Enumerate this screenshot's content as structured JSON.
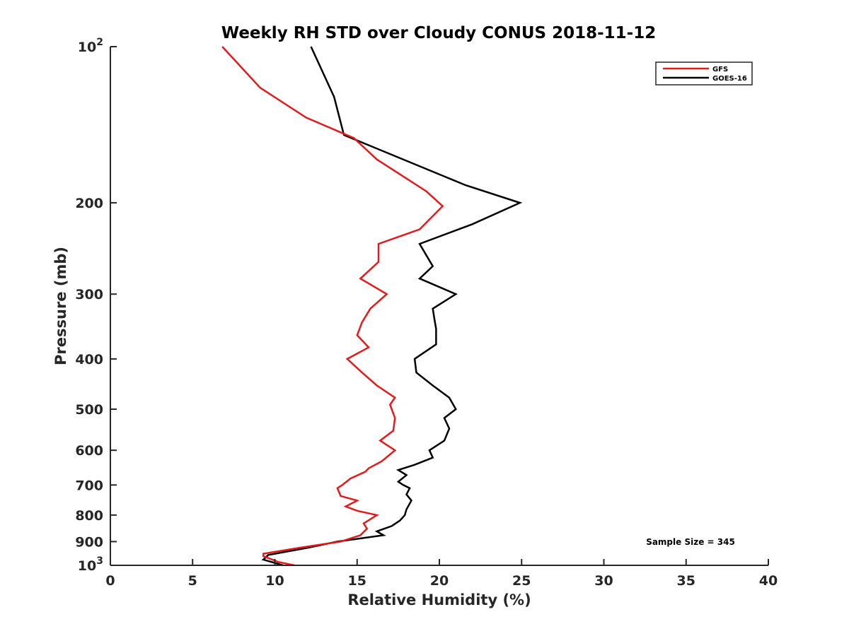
{
  "chart_data": {
    "type": "line",
    "title": "Weekly RH STD over Cloudy CONUS 2018-11-12",
    "xlabel": "Relative Humidity (%)",
    "ylabel": "Pressure (mb)",
    "xlim": [
      0,
      40
    ],
    "ylim": [
      100,
      1000
    ],
    "y_scale": "log",
    "y_reversed": true,
    "grid": false,
    "legend_position": "top-right",
    "x_ticks": [
      "0",
      "5",
      "10",
      "15",
      "20",
      "25",
      "30",
      "35",
      "40"
    ],
    "y_ticks": [
      {
        "value": 100,
        "base": "10",
        "exp": "2"
      },
      {
        "value": 200,
        "label": "200"
      },
      {
        "value": 300,
        "label": "300"
      },
      {
        "value": 400,
        "label": "400"
      },
      {
        "value": 500,
        "label": "500"
      },
      {
        "value": 600,
        "label": "600"
      },
      {
        "value": 700,
        "label": "700"
      },
      {
        "value": 800,
        "label": "800"
      },
      {
        "value": 900,
        "label": "900"
      },
      {
        "value": 1000,
        "base": "10",
        "exp": "3"
      }
    ],
    "annotation": "Sample Size = 345",
    "series": [
      {
        "name": "GFS",
        "color": "#e41a1c",
        "points": [
          [
            11.2,
            1000
          ],
          [
            10.2,
            985
          ],
          [
            9.3,
            960
          ],
          [
            9.3,
            950
          ],
          [
            11.5,
            925
          ],
          [
            14.0,
            900
          ],
          [
            15.2,
            875
          ],
          [
            15.6,
            850
          ],
          [
            15.4,
            830
          ],
          [
            15.8,
            815
          ],
          [
            16.2,
            800
          ],
          [
            15.0,
            785
          ],
          [
            14.3,
            770
          ],
          [
            15.0,
            750
          ],
          [
            14.0,
            735
          ],
          [
            13.8,
            710
          ],
          [
            14.1,
            700
          ],
          [
            14.6,
            680
          ],
          [
            15.5,
            660
          ],
          [
            15.7,
            650
          ],
          [
            16.5,
            630
          ],
          [
            17.3,
            600
          ],
          [
            16.4,
            575
          ],
          [
            17.2,
            550
          ],
          [
            17.3,
            520
          ],
          [
            17.0,
            490
          ],
          [
            17.3,
            475
          ],
          [
            16.2,
            450
          ],
          [
            15.3,
            425
          ],
          [
            14.4,
            400
          ],
          [
            15.7,
            380
          ],
          [
            15.0,
            360
          ],
          [
            15.3,
            340
          ],
          [
            15.8,
            320
          ],
          [
            16.8,
            300
          ],
          [
            15.2,
            280
          ],
          [
            16.3,
            260
          ],
          [
            16.3,
            240
          ],
          [
            18.8,
            225
          ],
          [
            20.2,
            203
          ],
          [
            19.2,
            190
          ],
          [
            16.2,
            165
          ],
          [
            14.8,
            150
          ],
          [
            11.9,
            137
          ],
          [
            9.1,
            120
          ],
          [
            6.8,
            100
          ]
        ]
      },
      {
        "name": "GOES-16",
        "color": "#000000",
        "points": [
          [
            10.5,
            1000
          ],
          [
            9.3,
            975
          ],
          [
            9.6,
            955
          ],
          [
            12.0,
            925
          ],
          [
            13.8,
            900
          ],
          [
            16.6,
            875
          ],
          [
            16.2,
            860
          ],
          [
            17.1,
            840
          ],
          [
            17.6,
            820
          ],
          [
            17.9,
            800
          ],
          [
            18.0,
            780
          ],
          [
            18.3,
            750
          ],
          [
            18.0,
            730
          ],
          [
            18.2,
            710
          ],
          [
            17.8,
            700
          ],
          [
            17.5,
            690
          ],
          [
            18.0,
            670
          ],
          [
            17.5,
            655
          ],
          [
            18.5,
            640
          ],
          [
            19.6,
            620
          ],
          [
            19.4,
            600
          ],
          [
            20.3,
            575
          ],
          [
            20.6,
            545
          ],
          [
            20.3,
            520
          ],
          [
            21.0,
            500
          ],
          [
            20.6,
            475
          ],
          [
            19.6,
            450
          ],
          [
            18.6,
            425
          ],
          [
            18.5,
            400
          ],
          [
            19.8,
            375
          ],
          [
            19.8,
            350
          ],
          [
            19.7,
            335
          ],
          [
            19.6,
            320
          ],
          [
            21.0,
            300
          ],
          [
            18.8,
            280
          ],
          [
            19.6,
            265
          ],
          [
            18.8,
            240
          ],
          [
            22.0,
            220
          ],
          [
            24.9,
            200
          ],
          [
            21.6,
            185
          ],
          [
            14.2,
            148
          ],
          [
            13.6,
            125
          ],
          [
            12.2,
            100
          ]
        ]
      }
    ]
  }
}
